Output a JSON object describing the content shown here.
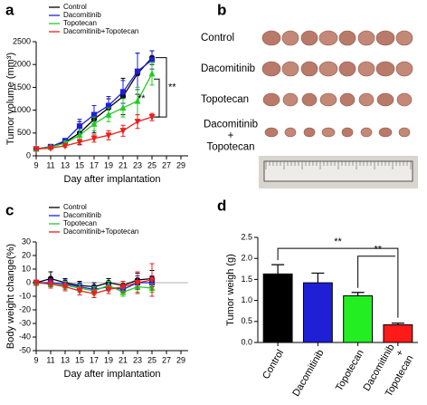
{
  "chart_data": [
    {
      "type": "line",
      "panel_label": "a",
      "ylabel": "Tumor volume (mm³)",
      "xlabel": "Day after implantation",
      "x": [
        9,
        11,
        13,
        15,
        17,
        19,
        21,
        23,
        25
      ],
      "xlim": [
        9,
        30
      ],
      "xticks": [
        9,
        11,
        13,
        15,
        17,
        19,
        21,
        23,
        25,
        27,
        29
      ],
      "ylim": [
        0,
        2500
      ],
      "yticks": [
        0,
        500,
        1000,
        1500,
        2000,
        2500
      ],
      "legend": "upper left",
      "series": [
        {
          "name": "Control",
          "color": "#000000",
          "marker": "circle",
          "values": [
            150,
            200,
            300,
            500,
            800,
            1050,
            1300,
            1800,
            2150
          ],
          "errors": [
            20,
            30,
            60,
            250,
            300,
            200,
            400,
            450,
            150
          ]
        },
        {
          "name": "Dacomitinib",
          "color": "#1f1fd6",
          "marker": "square",
          "values": [
            150,
            200,
            330,
            650,
            900,
            1100,
            1400,
            1850,
            2100
          ],
          "errors": [
            20,
            30,
            50,
            150,
            200,
            200,
            250,
            400,
            200
          ]
        },
        {
          "name": "Topotecan",
          "color": "#22cc22",
          "marker": "triangle",
          "values": [
            150,
            190,
            280,
            450,
            700,
            900,
            1050,
            1200,
            1800
          ],
          "errors": [
            20,
            20,
            40,
            100,
            150,
            150,
            200,
            300,
            250
          ]
        },
        {
          "name": "Dacomitinib+Topotecan",
          "color": "#e8211d",
          "marker": "triangle-down",
          "values": [
            150,
            170,
            220,
            300,
            380,
            450,
            550,
            750,
            850
          ],
          "errors": [
            20,
            20,
            30,
            60,
            80,
            100,
            120,
            150,
            80
          ]
        }
      ],
      "annotations": [
        "**",
        "**"
      ]
    },
    {
      "type": "line",
      "panel_label": "c",
      "ylabel": "Body weight change(%)",
      "xlabel": "Day after implantation",
      "x": [
        9,
        11,
        13,
        15,
        17,
        19,
        21,
        23,
        25
      ],
      "xlim": [
        9,
        30
      ],
      "xticks": [
        9,
        11,
        13,
        15,
        17,
        19,
        21,
        23,
        25,
        27,
        29
      ],
      "ylim": [
        -50,
        30
      ],
      "yticks": [
        -50,
        -40,
        -30,
        -20,
        -10,
        0,
        10,
        20,
        30
      ],
      "legend": "upper left",
      "series": [
        {
          "name": "Control",
          "color": "#000000",
          "marker": "circle",
          "values": [
            0,
            3,
            0,
            -2,
            -3,
            0,
            -2,
            2,
            3
          ],
          "errors": [
            2,
            5,
            3,
            3,
            3,
            3,
            3,
            5,
            6
          ]
        },
        {
          "name": "Dacomitinib",
          "color": "#1f1fd6",
          "marker": "square",
          "values": [
            0,
            0,
            -1,
            -3,
            -5,
            -3,
            -5,
            0,
            0
          ],
          "errors": [
            2,
            3,
            3,
            3,
            3,
            3,
            3,
            5,
            5
          ]
        },
        {
          "name": "Topotecan",
          "color": "#22cc22",
          "marker": "triangle",
          "values": [
            0,
            -1,
            -2,
            -4,
            -6,
            -2,
            -7,
            -3,
            -4
          ],
          "errors": [
            2,
            3,
            3,
            3,
            3,
            3,
            3,
            4,
            3
          ]
        },
        {
          "name": "Dacomitinib+Topotecan",
          "color": "#e8211d",
          "marker": "triangle-down",
          "values": [
            0,
            -1,
            -3,
            -6,
            -8,
            -5,
            -3,
            0,
            2
          ],
          "errors": [
            2,
            3,
            3,
            3,
            3,
            3,
            4,
            8,
            12
          ]
        }
      ]
    },
    {
      "type": "bar",
      "panel_label": "d",
      "ylabel": "Tumor weigh (g)",
      "categories": [
        "Control",
        "Dacomitinib",
        "Topotecan",
        "Dacomitinib\n+\nTopotecan"
      ],
      "values": [
        1.63,
        1.42,
        1.11,
        0.42
      ],
      "errors": [
        0.22,
        0.23,
        0.08,
        0.04
      ],
      "colors": [
        "#000000",
        "#1f1fd6",
        "#22ee22",
        "#ff1a1a"
      ],
      "ylim": [
        0,
        2.5
      ],
      "yticks": [
        {
          "value": 0,
          "label": "0.0"
        },
        {
          "value": 0.5,
          "label": "0.5"
        },
        {
          "value": 1,
          "label": "1.0"
        },
        {
          "value": 1.5,
          "label": "1.5"
        },
        {
          "value": 2,
          "label": "2.0"
        },
        {
          "value": 2.5,
          "label": "2.5"
        }
      ],
      "annotations": [
        "**",
        "**"
      ]
    }
  ],
  "image_panel": {
    "panel_label": "b",
    "rows": [
      "Control",
      "Dacomitinib",
      "Topotecan",
      "Dacomitinib\n+\nTopotecan"
    ]
  }
}
